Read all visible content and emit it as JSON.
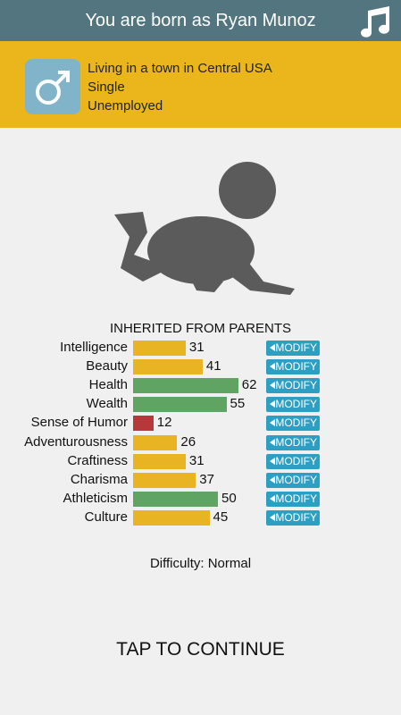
{
  "header": {
    "title": "You are born as Ryan Munoz"
  },
  "profile": {
    "lines": [
      "Living in a town in Central USA",
      "Single",
      "Unemployed"
    ]
  },
  "stats": {
    "title": "INHERITED FROM PARENTS",
    "button_label": "MODIFY",
    "items": [
      {
        "name": "Intelligence",
        "value": 31,
        "color": "#e8b423"
      },
      {
        "name": "Beauty",
        "value": 41,
        "color": "#e8b423"
      },
      {
        "name": "Health",
        "value": 62,
        "color": "#5fa463"
      },
      {
        "name": "Wealth",
        "value": 55,
        "color": "#5fa463"
      },
      {
        "name": "Sense of Humor",
        "value": 12,
        "color": "#b5383a"
      },
      {
        "name": "Adventurousness",
        "value": 26,
        "color": "#e8b423"
      },
      {
        "name": "Craftiness",
        "value": 31,
        "color": "#e8b423"
      },
      {
        "name": "Charisma",
        "value": 37,
        "color": "#e8b423"
      },
      {
        "name": "Athleticism",
        "value": 50,
        "color": "#5fa463"
      },
      {
        "name": "Culture",
        "value": 45,
        "color": "#e8b423"
      }
    ]
  },
  "difficulty": "Difficulty: Normal",
  "continue": "TAP TO CONTINUE"
}
